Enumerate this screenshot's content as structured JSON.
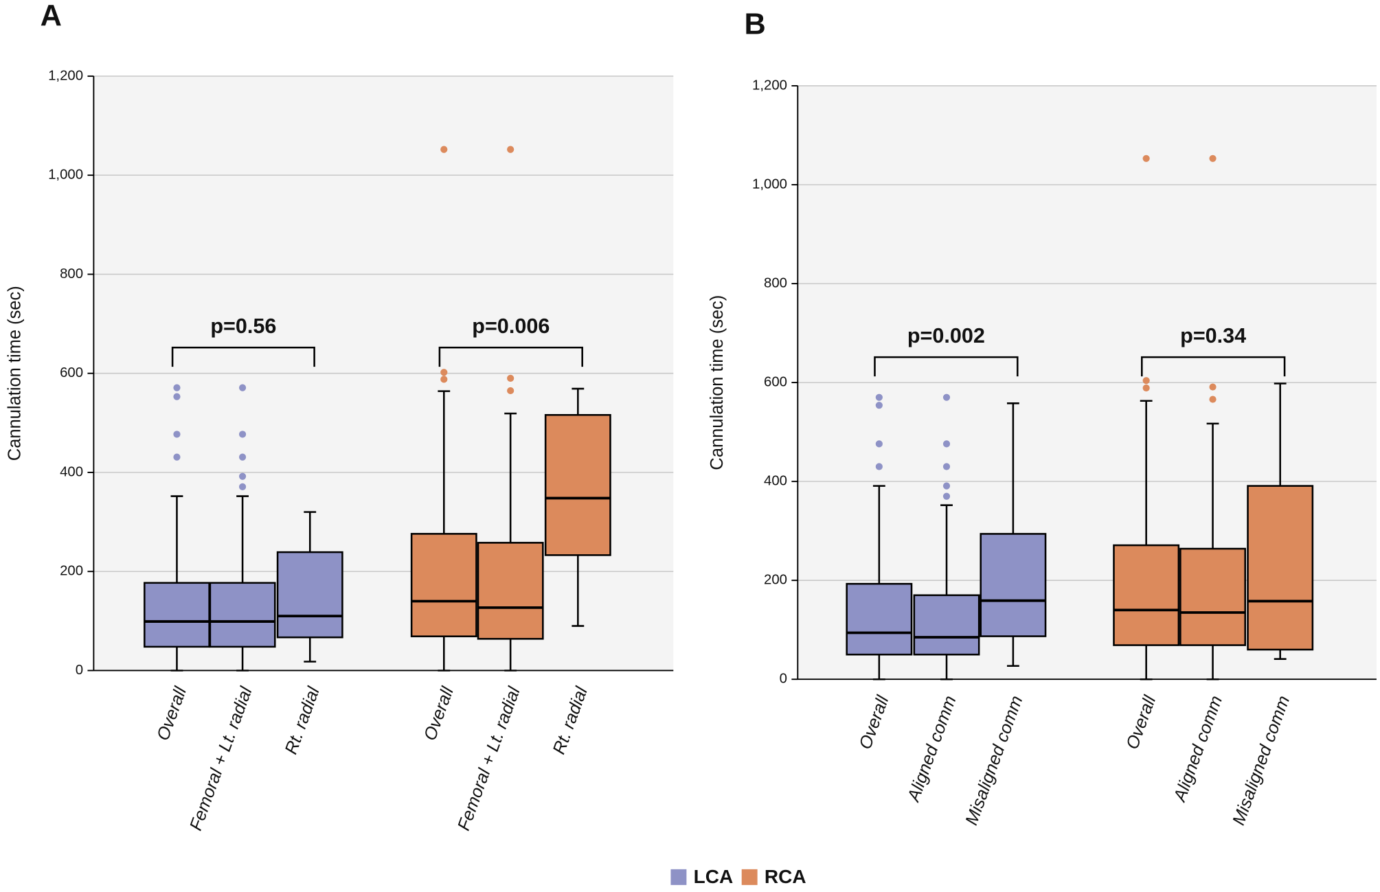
{
  "chart_data": [
    {
      "type": "box",
      "panel": "A",
      "y_label": "Cannulation time (sec)",
      "ylim": [
        0,
        1200
      ],
      "yticks": [
        0,
        200,
        400,
        600,
        800,
        {
          "value": 1000,
          "label": "1,000"
        },
        {
          "value": 1200,
          "label": "1,200"
        }
      ],
      "grid": true,
      "series": [
        {
          "name": "LCA",
          "color": "#8e92c6",
          "categories": [
            "Overall",
            "Femoral + Lt. radial",
            "Rt. radial"
          ],
          "boxes": [
            {
              "min": 0,
              "q1": 48,
              "median": 99,
              "q3": 177,
              "max": 352,
              "outliers": [
                431,
                477,
                553,
                571
              ]
            },
            {
              "min": 0,
              "q1": 48,
              "median": 99,
              "q3": 177,
              "max": 352,
              "outliers": [
                371,
                392,
                431,
                477,
                571
              ]
            },
            {
              "min": 18,
              "q1": 67,
              "median": 110,
              "q3": 239,
              "max": 320,
              "outliers": []
            }
          ]
        },
        {
          "name": "RCA",
          "color": "#dc8a5c",
          "categories": [
            "Overall",
            "Femoral + Lt. radial",
            "Rt. radial"
          ],
          "boxes": [
            {
              "min": 0,
              "q1": 69,
              "median": 140,
              "q3": 276,
              "max": 564,
              "outliers": [
                588,
                602,
                1052
              ]
            },
            {
              "min": 0,
              "q1": 64,
              "median": 127,
              "q3": 258,
              "max": 519,
              "outliers": [
                565,
                590,
                1052
              ]
            },
            {
              "min": 90,
              "q1": 233,
              "median": 348,
              "q3": 516,
              "max": 569,
              "outliers": []
            }
          ]
        }
      ],
      "annotations": [
        "p=0.56",
        "p=0.006"
      ]
    },
    {
      "type": "box",
      "panel": "B",
      "y_label": "Cannulation time (sec)",
      "ylim": [
        0,
        1200
      ],
      "yticks": [
        0,
        200,
        400,
        600,
        800,
        {
          "value": 1000,
          "label": "1,000"
        },
        {
          "value": 1200,
          "label": "1,200"
        }
      ],
      "grid": true,
      "series": [
        {
          "name": "LCA",
          "color": "#8e92c6",
          "categories": [
            "Overall",
            "Aligned comm",
            "Misaligned comm"
          ],
          "boxes": [
            {
              "min": 0,
              "q1": 50,
              "median": 94,
              "q3": 193,
              "max": 391,
              "outliers": [
                430,
                476,
                554,
                570
              ]
            },
            {
              "min": 0,
              "q1": 50,
              "median": 85,
              "q3": 170,
              "max": 352,
              "outliers": [
                370,
                391,
                430,
                476,
                570
              ]
            },
            {
              "min": 27,
              "q1": 87,
              "median": 159,
              "q3": 294,
              "max": 558,
              "outliers": []
            }
          ]
        },
        {
          "name": "RCA",
          "color": "#dc8a5c",
          "categories": [
            "Overall",
            "Aligned comm",
            "Misaligned comm"
          ],
          "boxes": [
            {
              "min": 0,
              "q1": 69,
              "median": 140,
              "q3": 271,
              "max": 563,
              "outliers": [
                589,
                604,
                1053
              ]
            },
            {
              "min": 0,
              "q1": 69,
              "median": 135,
              "q3": 264,
              "max": 517,
              "outliers": [
                566,
                591,
                1053
              ]
            },
            {
              "min": 41,
              "q1": 60,
              "median": 158,
              "q3": 391,
              "max": 598,
              "outliers": []
            }
          ]
        }
      ],
      "annotations": [
        "p=0.002",
        "p=0.34"
      ]
    }
  ]
}
